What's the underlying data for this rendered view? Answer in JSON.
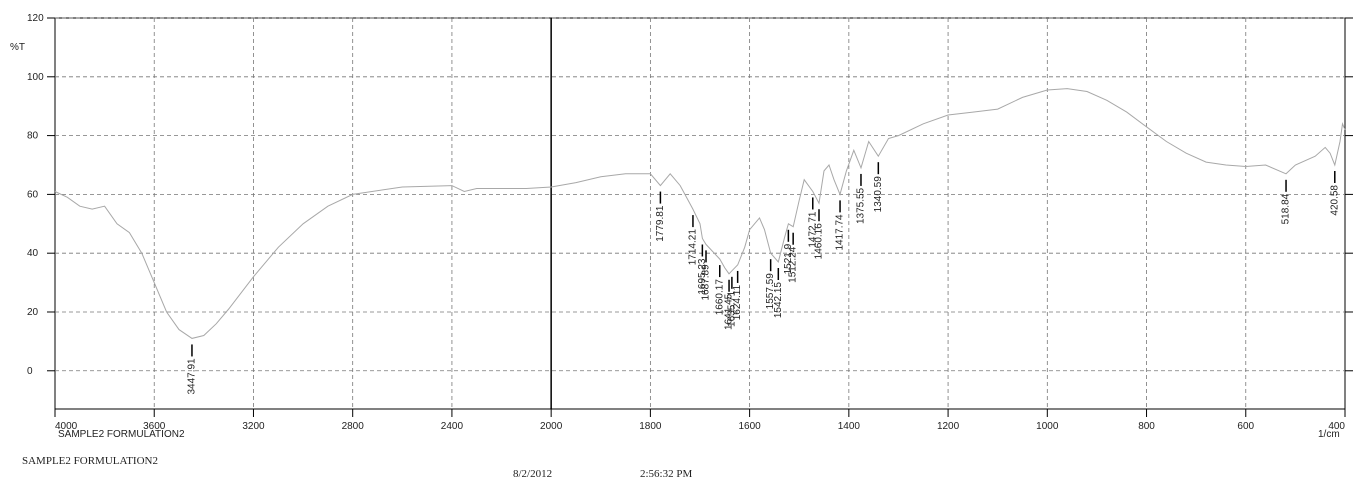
{
  "chart_data": {
    "type": "line",
    "ylabel": "%T",
    "x_unit": "1/cm",
    "sample": "SAMPLE2 FORMULATION2",
    "date": "8/2/2012",
    "time": "2:56:32 PM",
    "xlim": [
      4000,
      400
    ],
    "ylim": [
      -13,
      120
    ],
    "xticks": [
      4000,
      3600,
      3200,
      2800,
      2400,
      2000,
      1800,
      1600,
      1400,
      1200,
      1000,
      800,
      600,
      400
    ],
    "yticks": [
      0,
      20,
      40,
      60,
      80,
      100,
      120
    ],
    "grid": true,
    "color": "#a8a8a8",
    "x": [
      4000,
      3950,
      3900,
      3850,
      3800,
      3750,
      3700,
      3650,
      3600,
      3550,
      3500,
      3447.91,
      3400,
      3350,
      3300,
      3200,
      3100,
      3000,
      2900,
      2800,
      2600,
      2400,
      2350,
      2300,
      2200,
      2100,
      2000,
      1950,
      1900,
      1850,
      1800,
      1779.81,
      1760,
      1740,
      1714.21,
      1700,
      1695.23,
      1687.89,
      1660.17,
      1650,
      1641.45,
      1635.71,
      1624.11,
      1610,
      1600,
      1580,
      1570,
      1557.59,
      1542.15,
      1530,
      1521.9,
      1512.24,
      1500,
      1490,
      1472.71,
      1460.16,
      1450,
      1440,
      1430,
      1417.74,
      1405,
      1390,
      1375.55,
      1360,
      1340.59,
      1320,
      1300,
      1250,
      1200,
      1150,
      1100,
      1050,
      1000,
      960,
      920,
      880,
      840,
      800,
      760,
      720,
      680,
      640,
      600,
      560,
      518.84,
      500,
      460,
      440,
      430,
      420.58,
      410,
      405,
      400
    ],
    "values": [
      61,
      59,
      56,
      55,
      56,
      50,
      47,
      40,
      30,
      20,
      14,
      11,
      12,
      16,
      21,
      32,
      42,
      50,
      56,
      60,
      62.5,
      63,
      61,
      62,
      62,
      62,
      62.5,
      64,
      66,
      67,
      67,
      63,
      67,
      63,
      55,
      50,
      45,
      43,
      38,
      35,
      33,
      34,
      36,
      42,
      48,
      52,
      48,
      40,
      37,
      45,
      50,
      49,
      58,
      65,
      61,
      57,
      68,
      70,
      65,
      60,
      68,
      75,
      69,
      78,
      73,
      79,
      80,
      84,
      87,
      88,
      89,
      93,
      95.5,
      96,
      95,
      92,
      88,
      83,
      78,
      74,
      71,
      70,
      69.5,
      70,
      67,
      70,
      73,
      76,
      74,
      70,
      78,
      84,
      82
    ],
    "peaks": [
      3447.91,
      1779.81,
      1714.21,
      1695.23,
      1687.89,
      1660.17,
      1641.45,
      1635.71,
      1624.11,
      1557.59,
      1542.15,
      1521.9,
      1512.24,
      1472.71,
      1460.16,
      1417.74,
      1375.55,
      1340.59,
      518.84,
      420.58
    ]
  }
}
